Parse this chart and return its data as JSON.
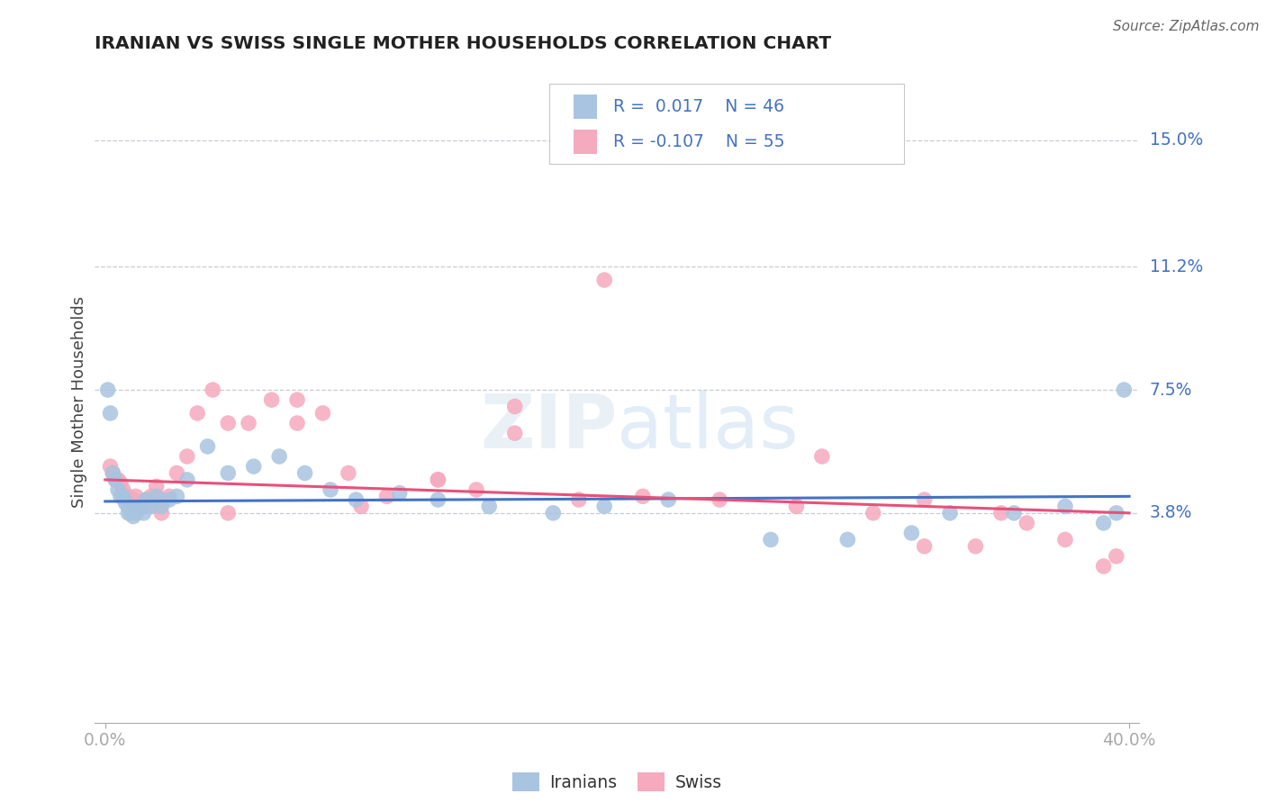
{
  "title": "IRANIAN VS SWISS SINGLE MOTHER HOUSEHOLDS CORRELATION CHART",
  "source": "Source: ZipAtlas.com",
  "ylabel": "Single Mother Households",
  "xlim": [
    0.0,
    0.4
  ],
  "ylim": [
    -0.025,
    0.168
  ],
  "yticks": [
    0.038,
    0.075,
    0.112,
    0.15
  ],
  "ytick_labels": [
    "3.8%",
    "7.5%",
    "11.2%",
    "15.0%"
  ],
  "xtick_labels": [
    "0.0%",
    "40.0%"
  ],
  "iranians_R": "0.017",
  "iranians_N": "46",
  "swiss_R": "-0.107",
  "swiss_N": "55",
  "iranian_color": "#a8c4e0",
  "swiss_color": "#f5aabe",
  "iranian_line_color": "#4472c4",
  "swiss_line_color": "#e8507a",
  "legend_label_iranian": "Iranians",
  "legend_label_swiss": "Swiss",
  "background_color": "#ffffff",
  "grid_color": "#c8ccd8",
  "title_color": "#222222",
  "axis_label_color": "#4472c4",
  "iranians_x": [
    0.001,
    0.002,
    0.003,
    0.004,
    0.005,
    0.006,
    0.007,
    0.008,
    0.009,
    0.009,
    0.01,
    0.011,
    0.012,
    0.013,
    0.014,
    0.015,
    0.015,
    0.016,
    0.018,
    0.02,
    0.022,
    0.025,
    0.028,
    0.032,
    0.04,
    0.048,
    0.058,
    0.068,
    0.078,
    0.088,
    0.098,
    0.115,
    0.13,
    0.15,
    0.175,
    0.195,
    0.22,
    0.26,
    0.29,
    0.315,
    0.33,
    0.355,
    0.375,
    0.39,
    0.395,
    0.398
  ],
  "iranians_y": [
    0.075,
    0.068,
    0.05,
    0.048,
    0.045,
    0.043,
    0.043,
    0.041,
    0.04,
    0.038,
    0.038,
    0.037,
    0.038,
    0.039,
    0.04,
    0.04,
    0.038,
    0.042,
    0.04,
    0.043,
    0.04,
    0.042,
    0.043,
    0.048,
    0.058,
    0.05,
    0.052,
    0.055,
    0.05,
    0.045,
    0.042,
    0.044,
    0.042,
    0.04,
    0.038,
    0.04,
    0.042,
    0.03,
    0.03,
    0.032,
    0.038,
    0.038,
    0.04,
    0.035,
    0.038,
    0.075
  ],
  "swiss_x": [
    0.002,
    0.003,
    0.004,
    0.005,
    0.006,
    0.007,
    0.008,
    0.009,
    0.01,
    0.011,
    0.012,
    0.013,
    0.014,
    0.015,
    0.016,
    0.017,
    0.018,
    0.02,
    0.022,
    0.025,
    0.028,
    0.032,
    0.036,
    0.042,
    0.048,
    0.056,
    0.065,
    0.075,
    0.085,
    0.095,
    0.11,
    0.13,
    0.145,
    0.16,
    0.185,
    0.21,
    0.24,
    0.27,
    0.3,
    0.32,
    0.34,
    0.36,
    0.375,
    0.39,
    0.395,
    0.28,
    0.32,
    0.35,
    0.195,
    0.16,
    0.13,
    0.1,
    0.075,
    0.048,
    0.022
  ],
  "swiss_y": [
    0.052,
    0.05,
    0.048,
    0.048,
    0.047,
    0.045,
    0.043,
    0.043,
    0.042,
    0.042,
    0.043,
    0.041,
    0.04,
    0.041,
    0.042,
    0.04,
    0.043,
    0.046,
    0.042,
    0.043,
    0.05,
    0.055,
    0.068,
    0.075,
    0.065,
    0.065,
    0.072,
    0.072,
    0.068,
    0.05,
    0.043,
    0.048,
    0.045,
    0.062,
    0.042,
    0.043,
    0.042,
    0.04,
    0.038,
    0.042,
    0.028,
    0.035,
    0.03,
    0.022,
    0.025,
    0.055,
    0.028,
    0.038,
    0.108,
    0.07,
    0.048,
    0.04,
    0.065,
    0.038,
    0.038
  ]
}
